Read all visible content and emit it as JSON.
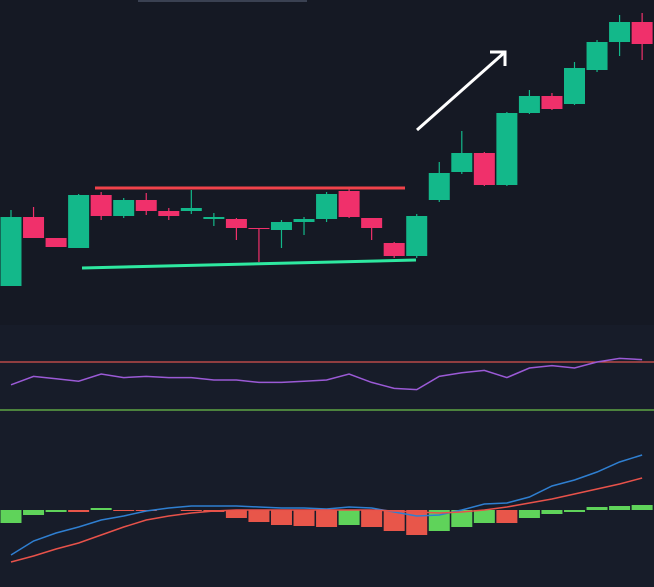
{
  "chart_data": [
    {
      "type": "candlestick",
      "open": [
        44,
        113,
        92,
        82,
        135,
        114,
        130,
        119,
        119,
        111,
        111,
        102,
        100,
        108,
        111,
        139,
        112,
        87,
        74,
        130,
        158,
        177,
        145,
        217,
        234,
        226,
        260,
        288,
        308
      ],
      "high": [
        120,
        123,
        92,
        136,
        138,
        132,
        137,
        122,
        140,
        117,
        112,
        102,
        110,
        113,
        138,
        141,
        112,
        88,
        116,
        168,
        199,
        178,
        218,
        240,
        237,
        268,
        290,
        315,
        317
      ],
      "low": [
        44,
        92,
        83,
        82,
        110,
        112,
        115,
        110,
        116,
        104,
        90,
        68,
        82,
        95,
        108,
        112,
        90,
        72,
        72,
        128,
        156,
        144,
        144,
        216,
        220,
        225,
        258,
        274,
        270
      ],
      "close": [
        113,
        92,
        83,
        135,
        114,
        130,
        119,
        114,
        122,
        113,
        102,
        101,
        108,
        111,
        136,
        113,
        102,
        74,
        114,
        157,
        177,
        145,
        217,
        234,
        221,
        262,
        288,
        308,
        286
      ],
      "up_color": "#13b88a",
      "down_color": "#f0306b",
      "ylim": [
        0,
        330
      ]
    },
    {
      "type": "line",
      "series": [
        {
          "color": "#9b5ad6",
          "values": [
            51,
            58,
            56,
            54,
            60,
            57,
            58,
            57,
            57,
            55,
            55,
            53,
            53,
            54,
            55,
            60,
            53,
            48,
            47,
            58,
            61,
            63,
            57,
            65,
            67,
            65,
            70,
            73,
            72
          ]
        }
      ],
      "levels": [
        70,
        30
      ],
      "level_colors": [
        "#d9534f",
        "#6cc04a"
      ],
      "ylim": [
        0,
        100
      ]
    },
    {
      "type": "macd",
      "histogram": [
        -13,
        -5,
        -2,
        -2,
        2,
        -1,
        -1,
        0,
        -1,
        -2,
        -8,
        -12,
        -15,
        -16,
        -17,
        -15,
        -17,
        -21,
        -25,
        -21,
        -17,
        -13,
        -13,
        -8,
        -4,
        -2,
        3,
        4,
        5
      ],
      "histogram_colors": [
        "#5fd35a",
        "#5fd35a",
        "#5fd35a",
        "#e8564a",
        "#5fd35a",
        "#e8564a",
        "#e8564a",
        "#e8564a",
        "#e8564a",
        "#e8564a",
        "#e8564a",
        "#e8564a",
        "#e8564a",
        "#e8564a",
        "#e8564a",
        "#5fd35a",
        "#e8564a",
        "#e8564a",
        "#e8564a",
        "#5fd35a",
        "#5fd35a",
        "#5fd35a",
        "#e8564a",
        "#5fd35a",
        "#5fd35a",
        "#5fd35a",
        "#5fd35a",
        "#5fd35a",
        "#5fd35a"
      ],
      "series": [
        {
          "color": "#2f7fd1",
          "values": [
            -45,
            -31,
            -23,
            -17,
            -10,
            -6,
            -1,
            2,
            4,
            4,
            4,
            3,
            2,
            2,
            1,
            3,
            2,
            -2,
            -6,
            -5,
            0,
            6,
            7,
            13,
            24,
            30,
            38,
            48,
            55
          ]
        },
        {
          "color": "#e8524a",
          "values": [
            -52,
            -46,
            -39,
            -33,
            -25,
            -17,
            -10,
            -6,
            -3,
            -1,
            0,
            0,
            0,
            0,
            0,
            0,
            0,
            -1,
            -2,
            -3,
            -2,
            0,
            3,
            7,
            11,
            16,
            21,
            26,
            32
          ]
        }
      ],
      "ylim": [
        -77,
        90
      ]
    }
  ]
}
